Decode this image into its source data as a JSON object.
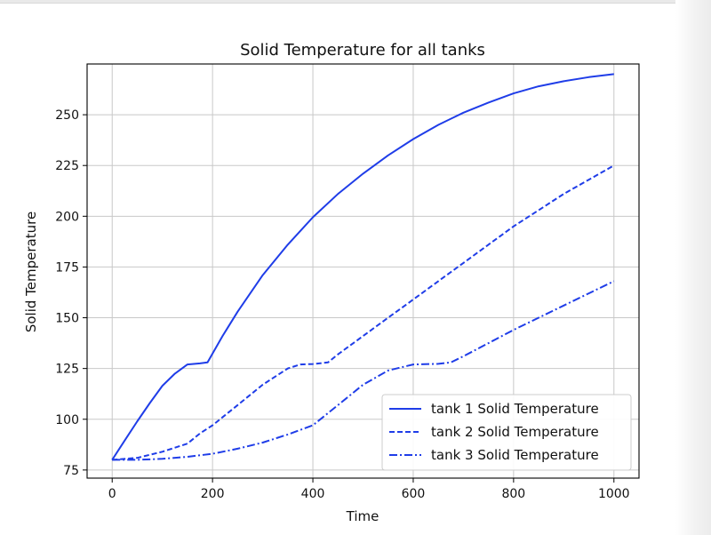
{
  "chart_data": {
    "type": "line",
    "title": "Solid Temperature for all tanks",
    "xlabel": "Time",
    "ylabel": "Solid Temperature",
    "xlim": [
      -50,
      1050
    ],
    "ylim": [
      71,
      275
    ],
    "xticks": [
      0,
      200,
      400,
      600,
      800,
      1000
    ],
    "yticks": [
      75,
      100,
      125,
      150,
      175,
      200,
      225,
      250
    ],
    "grid": true,
    "legend_position": "lower right",
    "line_color": "#1f3de8",
    "series": [
      {
        "name": "tank 1 Solid Temperature",
        "style": "solid",
        "x": [
          0,
          25,
          50,
          75,
          100,
          125,
          150,
          160,
          175,
          190,
          220,
          250,
          300,
          350,
          400,
          450,
          500,
          550,
          600,
          650,
          700,
          750,
          800,
          850,
          900,
          950,
          1000
        ],
        "y": [
          80,
          89.5,
          99,
          108,
          116.5,
          122.5,
          127,
          127.2,
          127.5,
          128,
          141,
          153,
          171,
          186,
          199.5,
          211,
          221,
          230,
          238,
          245,
          251,
          256,
          260.5,
          264,
          266.5,
          268.5,
          270
        ]
      },
      {
        "name": "tank 2 Solid Temperature",
        "style": "dashed",
        "x": [
          0,
          50,
          100,
          150,
          175,
          200,
          250,
          300,
          350,
          375,
          400,
          430,
          450,
          500,
          550,
          600,
          650,
          700,
          750,
          800,
          850,
          900,
          950,
          1000
        ],
        "y": [
          80,
          81,
          84,
          88,
          93,
          97,
          107,
          117,
          125,
          127,
          127.2,
          128,
          132,
          141,
          150,
          159,
          168,
          177,
          186,
          195,
          203,
          211,
          218,
          225
        ]
      },
      {
        "name": "tank 3 Solid Temperature",
        "style": "dashdot",
        "x": [
          0,
          50,
          100,
          150,
          200,
          250,
          300,
          350,
          400,
          430,
          450,
          500,
          550,
          600,
          650,
          675,
          700,
          750,
          800,
          850,
          900,
          950,
          1000
        ],
        "y": [
          80,
          80,
          80.5,
          81.5,
          83,
          85.5,
          88.5,
          92.5,
          97,
          103,
          107,
          117,
          124,
          127,
          127.3,
          128,
          131,
          137.5,
          144,
          150,
          156,
          162,
          168
        ]
      }
    ]
  }
}
